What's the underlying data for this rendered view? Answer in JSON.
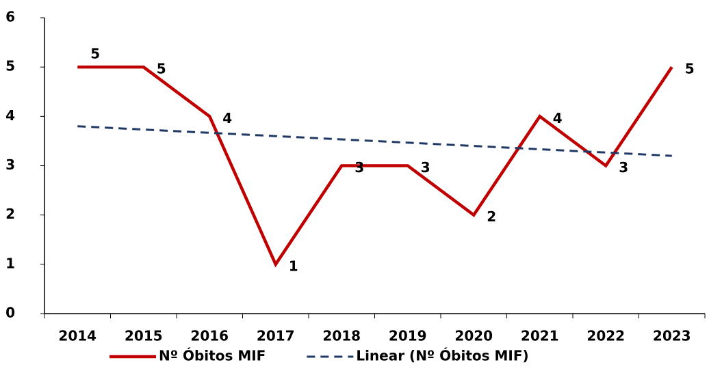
{
  "chart_data": {
    "type": "line",
    "categories": [
      "2014",
      "2015",
      "2016",
      "2017",
      "2018",
      "2019",
      "2020",
      "2021",
      "2022",
      "2023"
    ],
    "series": [
      {
        "name": "Nº Óbitos MIF",
        "color": "#c00000",
        "values": [
          5,
          5,
          4,
          1,
          3,
          3,
          2,
          4,
          3,
          5
        ],
        "data_labels": true
      },
      {
        "name": "Linear (Nº Óbitos MIF)",
        "color": "#1f3864",
        "dashed": true,
        "values": [
          3.8,
          3.733,
          3.667,
          3.6,
          3.533,
          3.467,
          3.4,
          3.333,
          3.267,
          3.2
        ]
      }
    ],
    "ylim": [
      0,
      6
    ],
    "yticks": [
      0,
      1,
      2,
      3,
      4,
      5,
      6
    ],
    "grid": false,
    "legend": "bottom"
  }
}
